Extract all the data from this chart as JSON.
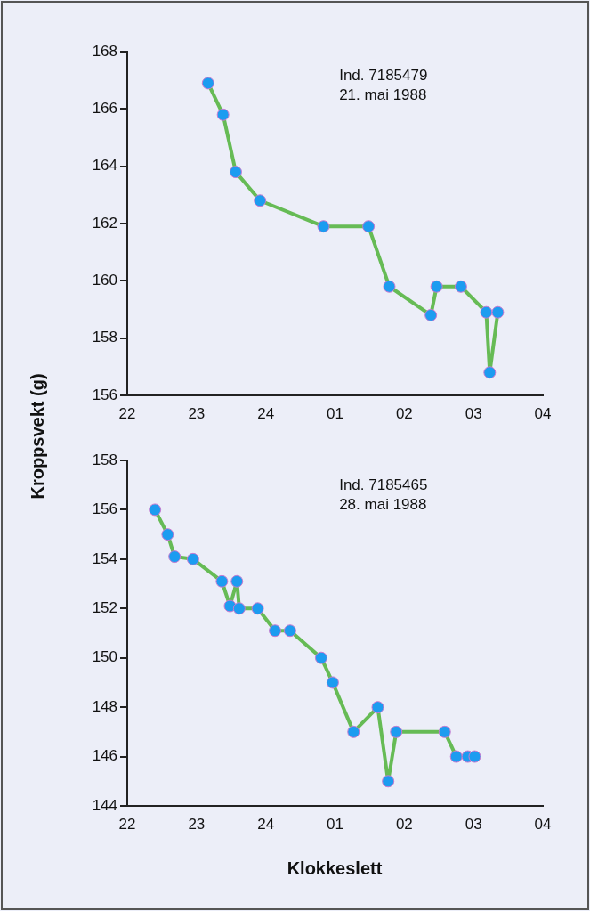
{
  "chart_data": [
    {
      "type": "line",
      "ylabel": "Kroppsvekt (g)",
      "annotations": [
        "Ind. 7185479",
        "21. mai 1988"
      ],
      "x": [
        "1988-05-21T23:10",
        "1988-05-21T23:23",
        "1988-05-21T23:34",
        "1988-05-21T23:55",
        "1988-05-22T00:50",
        "1988-05-22T01:29",
        "1988-05-22T01:47",
        "1988-05-22T02:23",
        "1988-05-22T02:28",
        "1988-05-22T02:49",
        "1988-05-22T03:11",
        "1988-05-22T03:14",
        "1988-05-22T03:21"
      ],
      "series": [
        {
          "color": "#66bb55",
          "values": [
            166.9,
            165.8,
            163.8,
            162.8,
            161.9,
            161.9,
            159.8,
            158.8,
            159.8,
            159.8,
            158.9,
            156.8,
            158.9
          ]
        }
      ],
      "xlim": [
        "1988-05-21T22:00",
        "1988-05-22T04:00"
      ],
      "xticks": [
        {
          "value": "1988-05-21T22:00",
          "label": "22"
        },
        {
          "value": "1988-05-21T23:00",
          "label": "23"
        },
        {
          "value": "1988-05-22T00:00",
          "label": "24"
        },
        {
          "value": "1988-05-22T01:00",
          "label": "01"
        },
        {
          "value": "1988-05-22T02:00",
          "label": "02"
        },
        {
          "value": "1988-05-22T03:00",
          "label": "03"
        },
        {
          "value": "1988-05-22T04:00",
          "label": "04"
        }
      ],
      "ylim": [
        156,
        168
      ],
      "yticks": [
        156,
        158,
        160,
        162,
        164,
        166,
        168
      ],
      "marker": "circle",
      "line_style": "solid"
    },
    {
      "type": "line",
      "xlabel": "Klokkeslett",
      "annotations": [
        "Ind. 7185465",
        "28. mai 1988"
      ],
      "x": [
        "1988-05-28T22:24",
        "1988-05-28T22:35",
        "1988-05-28T22:41",
        "1988-05-28T22:57",
        "1988-05-28T23:22",
        "1988-05-28T23:29",
        "1988-05-28T23:35",
        "1988-05-28T23:37",
        "1988-05-28T23:53",
        "1988-05-29T00:08",
        "1988-05-29T00:21",
        "1988-05-29T00:48",
        "1988-05-29T00:58",
        "1988-05-29T01:16",
        "1988-05-29T01:37",
        "1988-05-29T01:46",
        "1988-05-29T01:53",
        "1988-05-29T02:35",
        "1988-05-29T02:45",
        "1988-05-29T02:55",
        "1988-05-29T03:01"
      ],
      "series": [
        {
          "color": "#66bb55",
          "values": [
            156,
            155,
            154.1,
            154,
            153.1,
            152.1,
            153.1,
            152,
            152,
            151.1,
            151.1,
            150,
            149,
            147,
            148,
            145,
            147,
            147,
            146,
            146,
            146
          ]
        }
      ],
      "xlim": [
        "1988-05-28T22:00",
        "1988-05-29T04:00"
      ],
      "xticks": [
        {
          "value": "1988-05-28T22:00",
          "label": "22"
        },
        {
          "value": "1988-05-28T23:00",
          "label": "23"
        },
        {
          "value": "1988-05-29T00:00",
          "label": "24"
        },
        {
          "value": "1988-05-29T01:00",
          "label": "01"
        },
        {
          "value": "1988-05-29T02:00",
          "label": "02"
        },
        {
          "value": "1988-05-29T03:00",
          "label": "03"
        },
        {
          "value": "1988-05-29T04:00",
          "label": "04"
        }
      ],
      "ylim": [
        144,
        158
      ],
      "yticks": [
        144,
        146,
        148,
        150,
        152,
        154,
        156,
        158
      ],
      "marker": "circle",
      "line_style": "solid"
    }
  ]
}
